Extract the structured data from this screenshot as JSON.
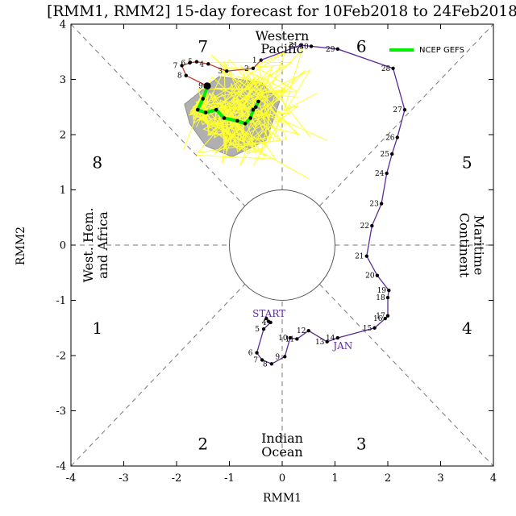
{
  "chart_data": {
    "type": "scatter",
    "title": "[RMM1, RMM2] 15-day forecast for 10Feb2018 to 24Feb2018",
    "xlabel": "RMM1",
    "ylabel": "RMM2",
    "xlim": [
      -4,
      4
    ],
    "ylim": [
      -4,
      4
    ],
    "xticks": [
      "-4",
      "-3",
      "-2",
      "-1",
      "0",
      "1",
      "2",
      "3",
      "4"
    ],
    "yticks": [
      "-4",
      "-3",
      "-2",
      "-1",
      "0",
      "1",
      "2",
      "3",
      "4"
    ],
    "phases": [
      {
        "label": "1",
        "x": -3.5,
        "y": -1.5
      },
      {
        "label": "2",
        "x": -1.5,
        "y": -3.6
      },
      {
        "label": "3",
        "x": 1.5,
        "y": -3.6
      },
      {
        "label": "4",
        "x": 3.5,
        "y": -1.5
      },
      {
        "label": "5",
        "x": 3.5,
        "y": 1.5
      },
      {
        "label": "6",
        "x": 1.5,
        "y": 3.6
      },
      {
        "label": "7",
        "x": -1.5,
        "y": 3.6
      },
      {
        "label": "8",
        "x": -3.5,
        "y": 1.5
      }
    ],
    "regions": {
      "top": [
        "Western",
        "Pacific"
      ],
      "bottom": [
        "Indian",
        "Ocean"
      ],
      "left": [
        "West. Hem.",
        "and Africa"
      ],
      "right": [
        "Maritime",
        "Continent"
      ]
    },
    "legend": {
      "label": "NCEP GEFS",
      "color": "#00ee00",
      "position": "top-right"
    },
    "colors": {
      "jan": "#5b2c99",
      "feb": "#c0392b",
      "ensemble": "#ffff33",
      "mean": "#00ee00",
      "spread": "#b0b0b0"
    },
    "month_labels": [
      {
        "text": "START",
        "x": -0.25,
        "y": -1.3
      },
      {
        "text": "JAN",
        "x": 1.15,
        "y": -1.88
      }
    ],
    "series": [
      {
        "name": "JAN",
        "color": "#5b2c99",
        "days": [
          "4",
          "5",
          "6",
          "7",
          "8",
          "9",
          "10",
          "11",
          "12",
          "13",
          "14",
          "15",
          "16",
          "17",
          "18",
          "19",
          "20",
          "21",
          "22",
          "23",
          "24",
          "25",
          "26",
          "27",
          "28",
          "29",
          "30",
          "31"
        ],
        "x": [
          -0.22,
          -0.35,
          -0.48,
          -0.38,
          -0.2,
          0.05,
          0.15,
          0.28,
          0.5,
          0.85,
          1.05,
          1.75,
          1.95,
          2.0,
          2.0,
          2.02,
          1.8,
          1.6,
          1.7,
          1.88,
          1.98,
          2.08,
          2.18,
          2.32,
          2.1,
          1.05,
          0.55,
          0.35
        ],
        "y": [
          -1.4,
          -1.52,
          -1.95,
          -2.08,
          -2.15,
          -2.02,
          -1.68,
          -1.7,
          -1.55,
          -1.75,
          -1.68,
          -1.5,
          -1.33,
          -1.28,
          -0.95,
          -0.82,
          -0.55,
          -0.2,
          0.35,
          0.75,
          1.3,
          1.65,
          1.95,
          2.45,
          3.2,
          3.55,
          3.6,
          3.62
        ]
      },
      {
        "name": "FEB",
        "color": "#c0392b",
        "days": [
          "1",
          "2",
          "3",
          "4",
          "5",
          "6",
          "7",
          "8",
          "9"
        ],
        "x": [
          -0.4,
          -0.55,
          -1.05,
          -1.4,
          -1.62,
          -1.75,
          -1.9,
          -1.82,
          -1.42
        ],
        "y": [
          3.35,
          3.2,
          3.15,
          3.28,
          3.32,
          3.3,
          3.25,
          3.07,
          2.88
        ]
      }
    ],
    "start_marks": [
      {
        "x": -0.3,
        "y": -1.33
      },
      {
        "x": -0.26,
        "y": -1.38
      }
    ],
    "ensemble_mean": {
      "x": [
        -1.42,
        -1.5,
        -1.6,
        -1.45,
        -1.25,
        -1.1,
        -0.85,
        -0.7,
        -0.6,
        -0.55,
        -0.5,
        -0.45
      ],
      "y": [
        2.85,
        2.65,
        2.45,
        2.4,
        2.45,
        2.3,
        2.25,
        2.2,
        2.3,
        2.45,
        2.5,
        2.6
      ]
    },
    "spread_polygon": {
      "x": [
        -1.85,
        -1.2,
        -0.4,
        -0.05,
        -0.3,
        -0.95,
        -1.45,
        -1.75
      ],
      "y": [
        2.55,
        3.05,
        2.95,
        2.6,
        1.9,
        1.6,
        1.8,
        2.2
      ]
    }
  }
}
